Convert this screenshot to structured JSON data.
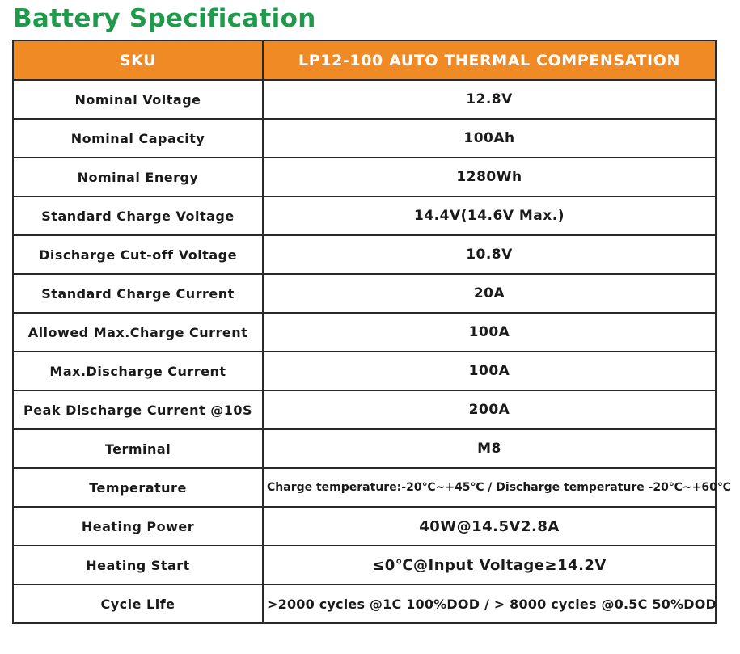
{
  "title": "Battery Specification",
  "header": {
    "label": "SKU",
    "value": "LP12-100   AUTO THERMAL COMPENSATION"
  },
  "rows": [
    {
      "label": "Nominal  Voltage",
      "value": "12.8V"
    },
    {
      "label": "Nominal  Capacity",
      "value": "100Ah"
    },
    {
      "label": "Nominal  Energy",
      "value": "1280Wh"
    },
    {
      "label": "Standard Charge Voltage",
      "value": "14.4V(14.6V Max.)"
    },
    {
      "label": "Discharge Cut-off Voltage",
      "value": "10.8V"
    },
    {
      "label": "Standard Charge Current",
      "value": "20A"
    },
    {
      "label": "Allowed Max.Charge Current",
      "value": "100A"
    },
    {
      "label": "Max.Discharge Current",
      "value": "100A"
    },
    {
      "label": "Peak Discharge Current @10S",
      "value": "200A"
    },
    {
      "label": "Terminal",
      "value": "M8"
    },
    {
      "label": "Temperature",
      "value": "Charge temperature:-20℃~+45℃ / Discharge temperature -20℃~+60℃"
    },
    {
      "label": "Heating Power",
      "value": "40W@14.5V2.8A"
    },
    {
      "label": "Heating Start",
      "value": "≤0℃@Input Voltage≥14.2V"
    },
    {
      "label": "Cycle Life",
      "value": ">2000 cycles @1C 100%DOD  /  > 8000 cycles @0.5C 50%DOD"
    }
  ],
  "colors": {
    "title": "#1f9a4a",
    "header_background": "#f08a24",
    "header_text": "#ffffff",
    "border": "#2a2a2a"
  }
}
